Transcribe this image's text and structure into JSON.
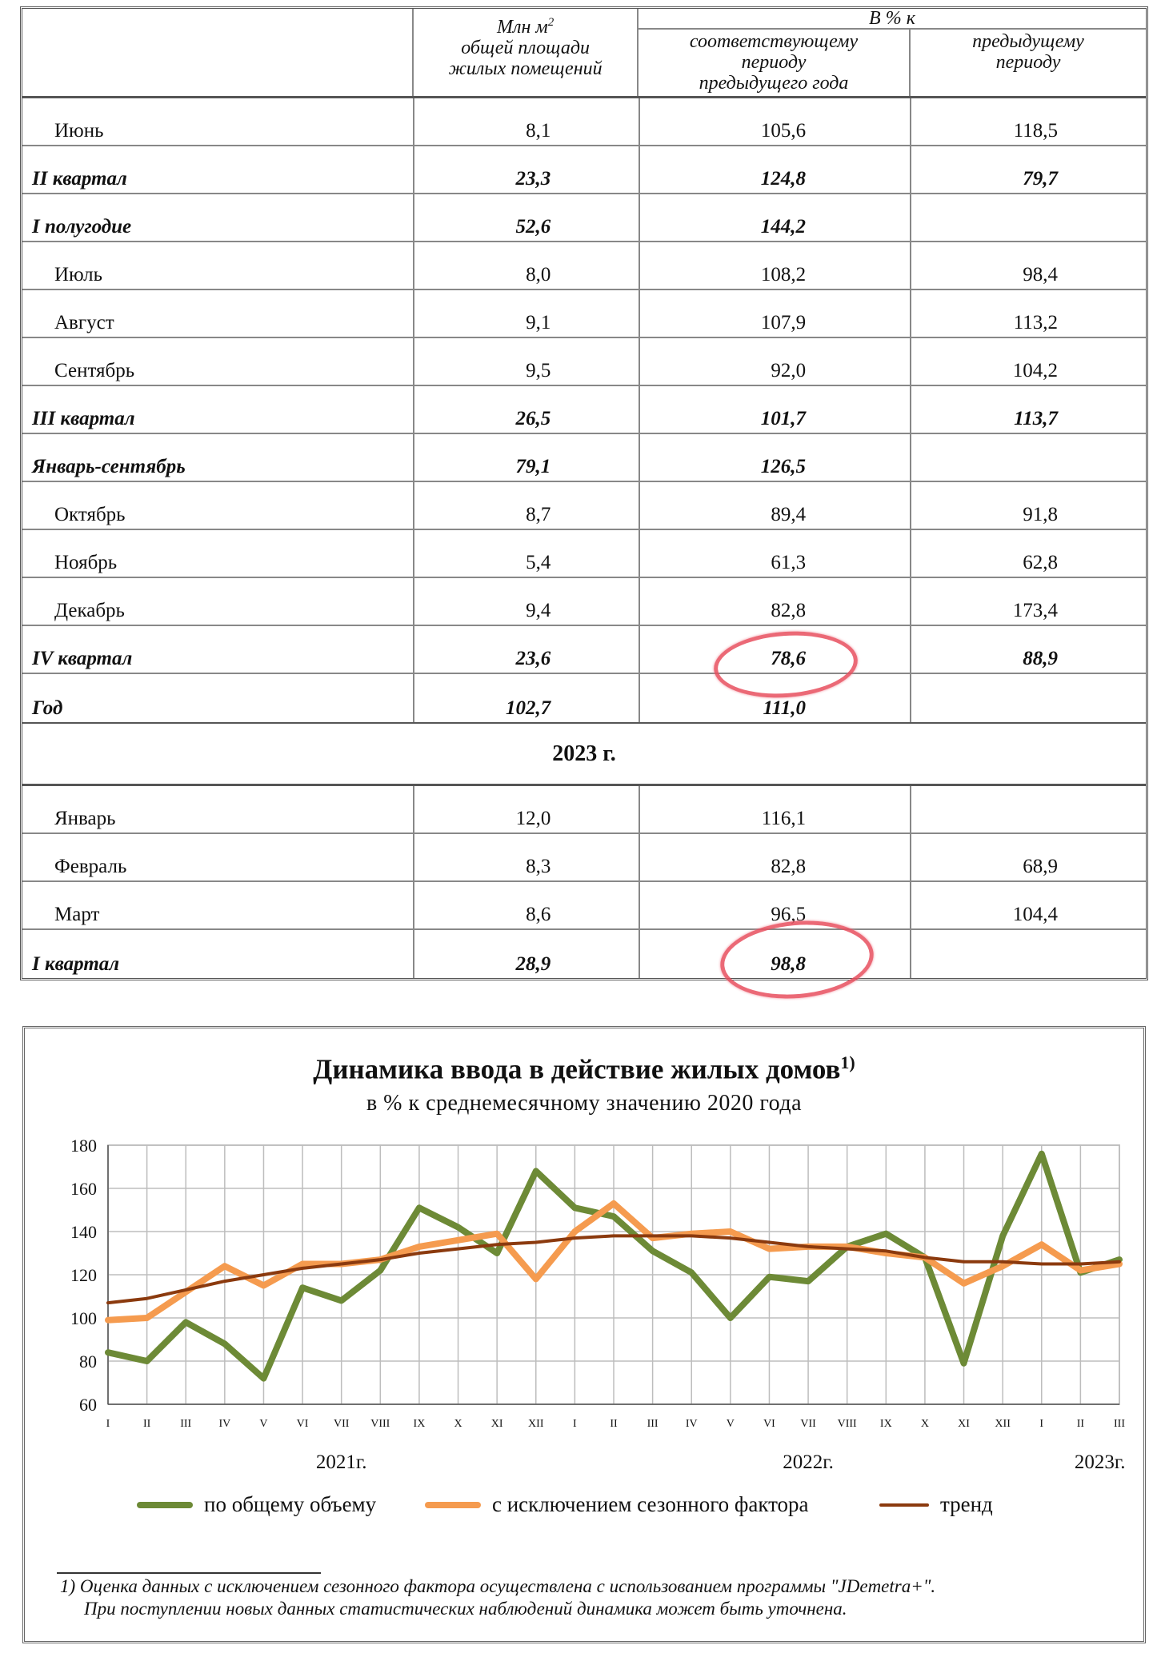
{
  "table": {
    "header": {
      "col1_lines": [
        "Млн м",
        "общей площади",
        "жилых помещений"
      ],
      "col1_sup": "2",
      "group": "В % к",
      "col2_lines": [
        "соответствующему",
        "периоду",
        "предыдущего года"
      ],
      "col3_lines": [
        "предыдущему",
        "периоду"
      ]
    },
    "rows_2022": [
      {
        "label": "Июнь",
        "area": "8,1",
        "yoy": "105,6",
        "prev": "118,5",
        "bold": false
      },
      {
        "label": "II квартал",
        "area": "23,3",
        "yoy": "124,8",
        "prev": "79,7",
        "bold": true
      },
      {
        "label": "I полугодие",
        "area": "52,6",
        "yoy": "144,2",
        "prev": "",
        "bold": true
      },
      {
        "label": "Июль",
        "area": "8,0",
        "yoy": "108,2",
        "prev": "98,4",
        "bold": false
      },
      {
        "label": "Август",
        "area": "9,1",
        "yoy": "107,9",
        "prev": "113,2",
        "bold": false
      },
      {
        "label": "Сентябрь",
        "area": "9,5",
        "yoy": "92,0",
        "prev": "104,2",
        "bold": false
      },
      {
        "label": "III квартал",
        "area": "26,5",
        "yoy": "101,7",
        "prev": "113,7",
        "bold": true
      },
      {
        "label": "Январь-сентябрь",
        "area": "79,1",
        "yoy": "126,5",
        "prev": "",
        "bold": true
      },
      {
        "label": "Октябрь",
        "area": "8,7",
        "yoy": "89,4",
        "prev": "91,8",
        "bold": false
      },
      {
        "label": "Ноябрь",
        "area": "5,4",
        "yoy": "61,3",
        "prev": "62,8",
        "bold": false
      },
      {
        "label": "Декабрь",
        "area": "9,4",
        "yoy": "82,8",
        "prev": "173,4",
        "bold": false
      },
      {
        "label": "IV квартал",
        "area": "23,6",
        "yoy": "78,6",
        "prev": "88,9",
        "bold": true
      },
      {
        "label": "Год",
        "area": "102,7",
        "yoy": "111,0",
        "prev": "",
        "bold": true
      }
    ],
    "year_label": "2023 г.",
    "rows_2023": [
      {
        "label": "Январь",
        "area": "12,0",
        "yoy": "116,1",
        "prev": "",
        "bold": false
      },
      {
        "label": "Февраль",
        "area": "8,3",
        "yoy": "82,8",
        "prev": "68,9",
        "bold": false
      },
      {
        "label": "Март",
        "area": "8,6",
        "yoy": "96,5",
        "prev": "104,4",
        "bold": false
      },
      {
        "label": "I квартал",
        "area": "28,9",
        "yoy": "98,8",
        "prev": "",
        "bold": true
      }
    ]
  },
  "chart_data": {
    "type": "line",
    "title": "Динамика ввода в действие жилых домов",
    "title_sup": "1)",
    "subtitle": "в % к среднемесячному значению 2020 года",
    "x": [
      "I",
      "II",
      "III",
      "IV",
      "V",
      "VI",
      "VII",
      "VIII",
      "IX",
      "X",
      "XI",
      "XII",
      "I",
      "II",
      "III",
      "IV",
      "V",
      "VI",
      "VII",
      "VIII",
      "IX",
      "X",
      "XI",
      "XII",
      "I",
      "II",
      "III"
    ],
    "year_labels": [
      {
        "label": "2021г.",
        "at_index": 6
      },
      {
        "label": "2022г.",
        "at_index": 18
      },
      {
        "label": "2023г.",
        "at_index": 25.5
      }
    ],
    "ylim": [
      60,
      180
    ],
    "yticks": [
      60,
      80,
      100,
      120,
      140,
      160,
      180
    ],
    "grid": true,
    "series": [
      {
        "name": "по общему объему",
        "color": "#6d8a36",
        "values": [
          84,
          80,
          98,
          88,
          72,
          114,
          108,
          122,
          151,
          142,
          130,
          168,
          151,
          147,
          131,
          121,
          100,
          119,
          117,
          133,
          139,
          128,
          79,
          138,
          176,
          121,
          127
        ]
      },
      {
        "name": "с исключением сезонного фактора",
        "color": "#f59b4f",
        "values": [
          99,
          100,
          112,
          124,
          115,
          125,
          125,
          127,
          133,
          136,
          139,
          118,
          140,
          153,
          137,
          139,
          140,
          132,
          133,
          133,
          130,
          128,
          116,
          124,
          134,
          122,
          125
        ]
      },
      {
        "name": "тренд",
        "color": "#8b3a0e",
        "values": [
          107,
          109,
          113,
          117,
          120,
          123,
          125,
          127,
          130,
          132,
          134,
          135,
          137,
          138,
          138,
          138,
          137,
          135,
          133,
          132,
          131,
          128,
          126,
          126,
          125,
          125,
          126
        ]
      }
    ],
    "legend_position": "bottom"
  },
  "footnote": {
    "line1": "1)  Оценка данных с исключением сезонного фактора осуществлена с использованием программы \"JDemetra+\".",
    "line2": "При поступлении новых данных статистических наблюдений динамика может быть уточнена."
  }
}
